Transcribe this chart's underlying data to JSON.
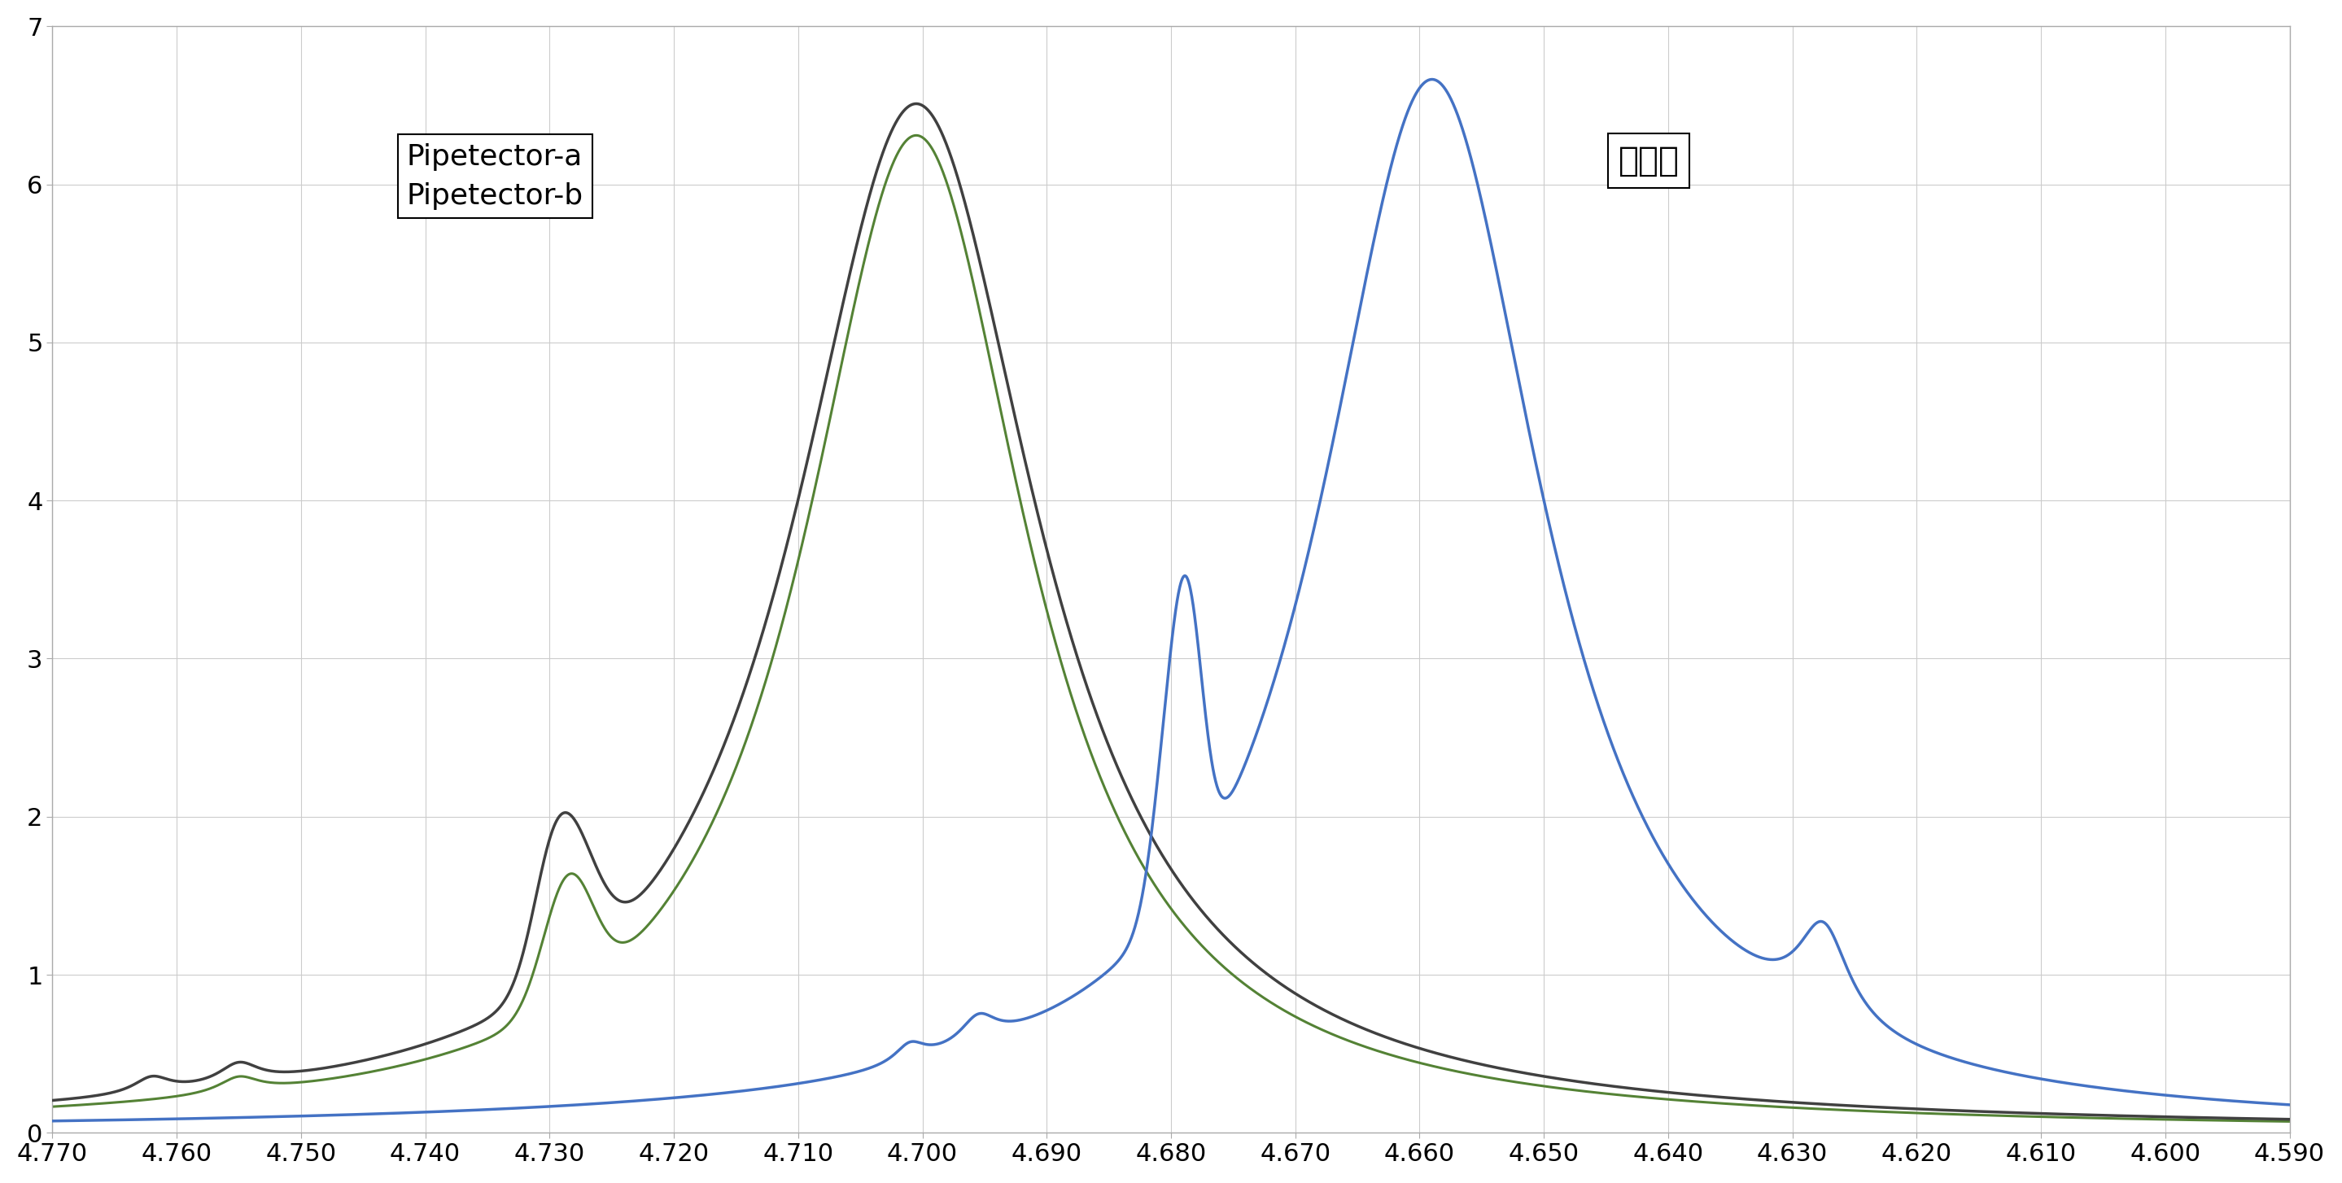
{
  "title": "",
  "xlabel": "",
  "ylabel": "",
  "xlim": [
    4.77,
    4.59
  ],
  "ylim": [
    0,
    7
  ],
  "yticks": [
    0,
    1,
    2,
    3,
    4,
    5,
    6,
    7
  ],
  "xticks": [
    4.77,
    4.76,
    4.75,
    4.74,
    4.73,
    4.72,
    4.71,
    4.7,
    4.69,
    4.68,
    4.67,
    4.66,
    4.65,
    4.64,
    4.63,
    4.62,
    4.61,
    4.6,
    4.59
  ],
  "background_color": "#ffffff",
  "grid_color": "#cccccc",
  "line_blue_color": "#4472c4",
  "line_dark_color": "#404040",
  "line_green_color": "#548235",
  "label_pipetector_a": "Pipetector-a",
  "label_pipetector_b": "Pipetector-b",
  "label_distilled": "蔽留水"
}
